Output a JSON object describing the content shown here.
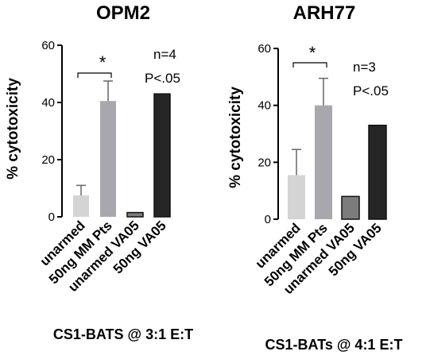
{
  "chart_data": [
    {
      "type": "bar",
      "title": "OPM2",
      "ylabel": "% cytotoxicity",
      "ylim": [
        0,
        60
      ],
      "yticks": [
        0,
        20,
        40,
        60
      ],
      "categories": [
        "unarmed",
        "50ng MM Pts",
        "unarmed VA05",
        "50ng VA05"
      ],
      "values": [
        7.5,
        40.5,
        1.5,
        43
      ],
      "errors": [
        3.5,
        7,
        null,
        null
      ],
      "bar_colors": [
        "#d4d4d4",
        "#a7a7ad",
        "#7c7c7c",
        "#262626"
      ],
      "annotations": {
        "significance": "*",
        "n": "n=4",
        "p": "P<.05"
      },
      "footer": "CS1-BATS @ 3:1 E:T"
    },
    {
      "type": "bar",
      "title": "ARH77",
      "ylabel": "% cytotoxicity",
      "ylim": [
        0,
        60
      ],
      "yticks": [
        0,
        20,
        40,
        60
      ],
      "categories": [
        "unarmed",
        "50ng MM Pts",
        "unarmed VA05",
        "50ng VA05"
      ],
      "values": [
        15.5,
        40,
        8,
        33
      ],
      "errors": [
        9,
        9.5,
        null,
        null
      ],
      "bar_colors": [
        "#d4d4d4",
        "#a7a7ad",
        "#7c7c7c",
        "#262626"
      ],
      "annotations": {
        "significance": "*",
        "n": "n=3",
        "p": "P<.05"
      },
      "footer": "CS1-BATs @ 4:1 E:T"
    }
  ]
}
